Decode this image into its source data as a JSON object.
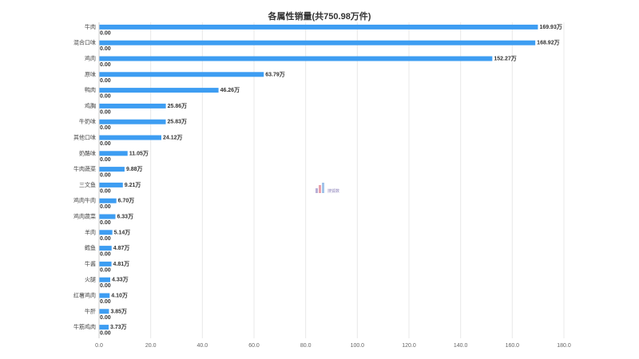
{
  "chart_data": {
    "type": "bar",
    "orientation": "horizontal",
    "title": "各属性销量(共750.98万件)",
    "xlabel": "",
    "ylabel": "",
    "xlim": [
      0,
      180
    ],
    "x_ticks": [
      "0.0",
      "20.0",
      "40.0",
      "60.0",
      "80.0",
      "100.0",
      "120.0",
      "140.0",
      "160.0",
      "180.0"
    ],
    "grid": true,
    "categories": [
      "牛肉",
      "混合口味",
      "鸡肉",
      "原味",
      "鸭肉",
      "鸡胸",
      "牛奶味",
      "其他口味",
      "奶酪味",
      "牛肉蔬菜",
      "三文鱼",
      "鸡肉牛肉",
      "鸡肉蔬菜",
      "羊肉",
      "鳕鱼",
      "牛酱",
      "火腿",
      "红薯鸡肉",
      "牛肝",
      "牛筋鸡肉"
    ],
    "series": [
      {
        "values": [
          169.93,
          168.92,
          152.27,
          63.79,
          46.26,
          25.86,
          25.83,
          24.12,
          11.05,
          9.88,
          9.21,
          6.7,
          6.33,
          5.14,
          4.87,
          4.81,
          4.33,
          4.1,
          3.85,
          3.73
        ],
        "labels": [
          "169.93万",
          "168.92万",
          "152.27万",
          "63.79万",
          "46.26万",
          "25.86万",
          "25.83万",
          "24.12万",
          "11.05万",
          "9.88万",
          "9.21万",
          "6.70万",
          "6.33万",
          "5.14万",
          "4.87万",
          "4.81万",
          "4.33万",
          "4.10万",
          "3.85万",
          "3.73万"
        ]
      },
      {
        "values": [
          0,
          0,
          0,
          0,
          0,
          0,
          0,
          0,
          0,
          0,
          0,
          0,
          0,
          0,
          0,
          0,
          0,
          0,
          0,
          0
        ],
        "labels": [
          "0.00",
          "0.00",
          "0.00",
          "0.00",
          "0.00",
          "0.00",
          "0.00",
          "0.00",
          "0.00",
          "0.00",
          "0.00",
          "0.00",
          "0.00",
          "0.00",
          "0.00",
          "0.00",
          "0.00",
          "0.00",
          "0.00",
          "0.00"
        ]
      }
    ],
    "colors": {
      "bar": "#3d9df2",
      "grid": "#e8e8e8",
      "axis": "#cccccc"
    }
  },
  "watermark": {
    "text": "搜狐数",
    "icon": "bar-chart-logo"
  }
}
